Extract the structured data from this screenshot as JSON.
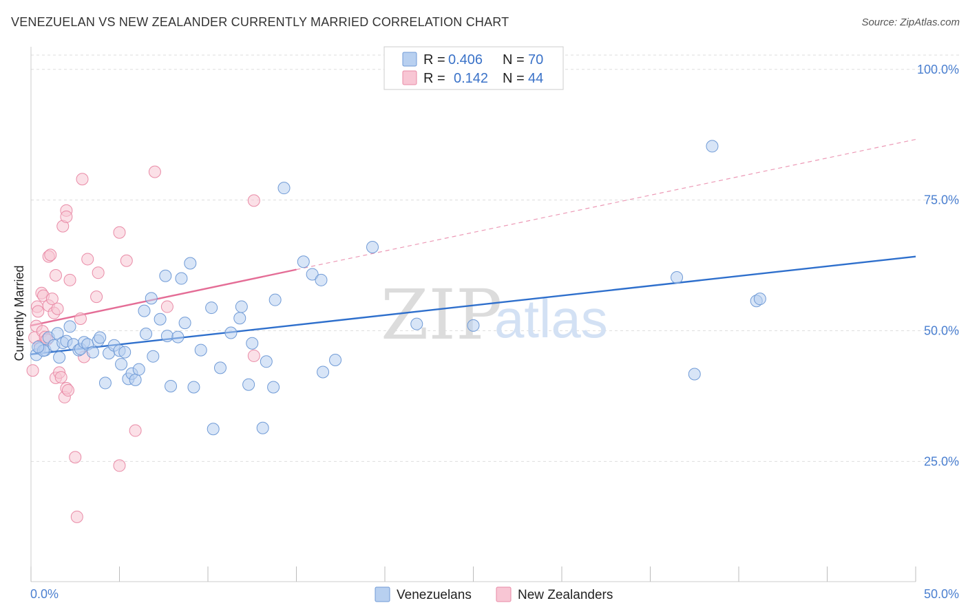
{
  "title": "VENEZUELAN VS NEW ZEALANDER CURRENTLY MARRIED CORRELATION CHART",
  "source": "Source: ZipAtlas.com",
  "watermark": {
    "zip": "ZIP",
    "atlas": "atlas"
  },
  "colors": {
    "blue_fill": "#b8d0f0",
    "blue_stroke": "#6f9ad6",
    "blue_line": "#2e6fcc",
    "pink_fill": "#f8c6d4",
    "pink_stroke": "#e98aa6",
    "pink_line": "#e46d96",
    "grid": "#dddddd",
    "tick_text": "#4a7fd0"
  },
  "legend": {
    "rows": [
      {
        "r_label": "R =",
        "r_value": "0.406",
        "n_label": "N =",
        "n_value": "70"
      },
      {
        "r_label": "R =",
        "r_value": "0.142",
        "n_label": "N =",
        "n_value": "44"
      }
    ]
  },
  "chart_data": {
    "type": "scatter",
    "title": "VENEZUELAN VS NEW ZEALANDER CURRENTLY MARRIED CORRELATION CHART",
    "xlabel": "",
    "ylabel": "Currently Married",
    "xlim": [
      0,
      50
    ],
    "ylim": [
      2,
      103
    ],
    "x_tick_labels": [
      "0.0%",
      "50.0%"
    ],
    "y_ticks": [
      25,
      50,
      75,
      100
    ],
    "y_tick_labels": [
      "25.0%",
      "50.0%",
      "75.0%",
      "100.0%"
    ],
    "grid": true,
    "legend_placement": "top-center",
    "series": [
      {
        "name": "Venezuelans",
        "r": 0.406,
        "n": 70,
        "trend": {
          "x": [
            0,
            50
          ],
          "y": [
            45.5,
            64.2
          ],
          "style": "solid"
        },
        "points": [
          [
            0.3,
            45.4
          ],
          [
            0.5,
            46.6
          ],
          [
            0.8,
            46.3
          ],
          [
            1.0,
            48.7
          ],
          [
            1.3,
            47.2
          ],
          [
            1.5,
            49.5
          ],
          [
            1.6,
            44.9
          ],
          [
            1.8,
            47.7
          ],
          [
            2.0,
            48.0
          ],
          [
            2.2,
            50.8
          ],
          [
            2.4,
            47.4
          ],
          [
            2.7,
            46.3
          ],
          [
            2.8,
            46.5
          ],
          [
            3.0,
            47.8
          ],
          [
            3.2,
            47.4
          ],
          [
            3.5,
            45.9
          ],
          [
            3.8,
            48.1
          ],
          [
            3.9,
            48.7
          ],
          [
            4.2,
            40.0
          ],
          [
            4.4,
            45.7
          ],
          [
            4.7,
            47.2
          ],
          [
            5.0,
            46.2
          ],
          [
            5.1,
            43.6
          ],
          [
            5.3,
            45.9
          ],
          [
            5.5,
            40.8
          ],
          [
            5.7,
            41.8
          ],
          [
            5.9,
            40.6
          ],
          [
            6.1,
            42.6
          ],
          [
            6.4,
            53.8
          ],
          [
            6.5,
            49.4
          ],
          [
            6.8,
            56.2
          ],
          [
            6.9,
            45.1
          ],
          [
            7.3,
            52.2
          ],
          [
            7.6,
            60.5
          ],
          [
            7.7,
            49.0
          ],
          [
            7.9,
            39.4
          ],
          [
            8.3,
            48.8
          ],
          [
            8.5,
            60.0
          ],
          [
            8.7,
            51.5
          ],
          [
            9.0,
            62.9
          ],
          [
            9.2,
            39.2
          ],
          [
            9.6,
            46.3
          ],
          [
            10.3,
            31.2
          ],
          [
            10.2,
            54.4
          ],
          [
            10.7,
            42.9
          ],
          [
            11.3,
            49.6
          ],
          [
            11.8,
            52.4
          ],
          [
            11.9,
            54.6
          ],
          [
            12.3,
            39.7
          ],
          [
            12.5,
            47.6
          ],
          [
            13.1,
            31.4
          ],
          [
            13.3,
            44.1
          ],
          [
            13.7,
            39.2
          ],
          [
            13.8,
            55.9
          ],
          [
            14.3,
            77.3
          ],
          [
            15.4,
            63.2
          ],
          [
            15.9,
            60.8
          ],
          [
            16.4,
            59.7
          ],
          [
            16.5,
            42.1
          ],
          [
            17.2,
            44.4
          ],
          [
            19.3,
            66.0
          ],
          [
            21.8,
            51.3
          ],
          [
            25.0,
            51.0
          ],
          [
            36.5,
            60.2
          ],
          [
            37.5,
            41.7
          ],
          [
            38.5,
            85.3
          ],
          [
            41.0,
            55.7
          ],
          [
            41.2,
            56.1
          ],
          [
            0.7,
            46.2
          ],
          [
            0.4,
            46.9
          ]
        ]
      },
      {
        "name": "New Zealanders",
        "r": 0.142,
        "n": 44,
        "trend": {
          "x": [
            0,
            15
          ],
          "y": [
            51.0,
            61.7
          ],
          "style": "solid",
          "extended_to": [
            50,
            86.6
          ],
          "extended_style": "dashed"
        },
        "points": [
          [
            0.1,
            42.4
          ],
          [
            0.2,
            48.7
          ],
          [
            0.3,
            50.9
          ],
          [
            0.35,
            54.6
          ],
          [
            0.4,
            53.7
          ],
          [
            0.5,
            47.1
          ],
          [
            0.6,
            57.2
          ],
          [
            0.65,
            49.9
          ],
          [
            0.7,
            56.7
          ],
          [
            0.8,
            48.8
          ],
          [
            0.9,
            48.3
          ],
          [
            1.0,
            64.2
          ],
          [
            1.0,
            54.8
          ],
          [
            1.1,
            64.5
          ],
          [
            1.2,
            56.1
          ],
          [
            1.3,
            53.4
          ],
          [
            1.4,
            41.0
          ],
          [
            1.5,
            54.2
          ],
          [
            1.4,
            60.6
          ],
          [
            1.6,
            42.0
          ],
          [
            1.7,
            41.1
          ],
          [
            1.8,
            70.0
          ],
          [
            1.9,
            37.3
          ],
          [
            2.0,
            73.0
          ],
          [
            2.0,
            71.8
          ],
          [
            2.0,
            39.0
          ],
          [
            2.1,
            38.6
          ],
          [
            2.2,
            59.7
          ],
          [
            2.5,
            25.8
          ],
          [
            2.6,
            14.4
          ],
          [
            2.8,
            52.3
          ],
          [
            2.9,
            79.0
          ],
          [
            3.0,
            45.0
          ],
          [
            3.2,
            63.7
          ],
          [
            3.7,
            56.5
          ],
          [
            3.8,
            61.1
          ],
          [
            5.0,
            68.8
          ],
          [
            5.0,
            24.2
          ],
          [
            5.4,
            63.4
          ],
          [
            5.9,
            30.9
          ],
          [
            7.0,
            80.4
          ],
          [
            7.7,
            54.6
          ],
          [
            12.6,
            45.2
          ],
          [
            12.6,
            74.9
          ]
        ]
      }
    ]
  },
  "bottom_legend": [
    {
      "label": "Venezuelans"
    },
    {
      "label": "New Zealanders"
    }
  ]
}
